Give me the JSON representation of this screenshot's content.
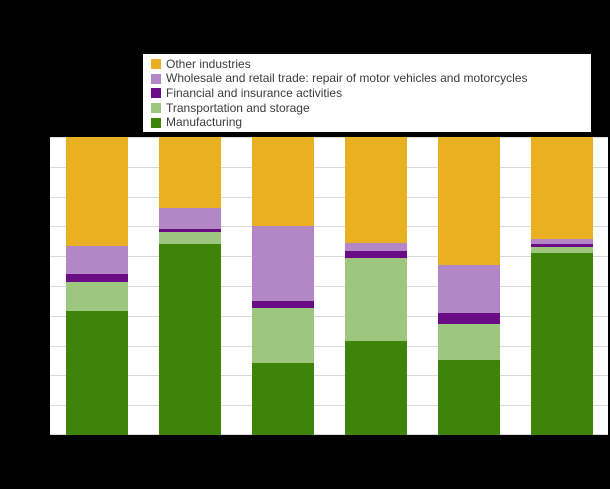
{
  "colors": {
    "background": "#000000",
    "plot_background": "#ffffff",
    "gridline": "#d9d9d9",
    "legend_border": "#000000",
    "legend_text": "#3d3d3d"
  },
  "legend": {
    "items": [
      {
        "label": "Other industries",
        "color": "#e9b121"
      },
      {
        "label": "Wholesale and retail trade: repair of motor vehicles and motorcycles",
        "color": "#b387c5"
      },
      {
        "label": "Financial and insurance activities",
        "color": "#690c86"
      },
      {
        "label": "Transportation and storage",
        "color": "#9dc67f"
      },
      {
        "label": "Manufacturing",
        "color": "#3e8408"
      }
    ]
  },
  "chart_data": {
    "type": "bar",
    "stacked": true,
    "units": "percent",
    "title": "",
    "xlabel": "",
    "ylabel": "",
    "categories": [
      "",
      "",
      "",
      "",
      "",
      ""
    ],
    "category_labels_visible": false,
    "axis_tick_labels_visible": false,
    "ylim": [
      0,
      100
    ],
    "ytick_interval": 10,
    "grid": true,
    "legend_position": "top",
    "series": [
      {
        "name": "Manufacturing",
        "color": "#3e8408",
        "values": [
          41.5,
          64.0,
          24.0,
          31.5,
          25.0,
          61.0
        ]
      },
      {
        "name": "Transportation and storage",
        "color": "#9dc67f",
        "values": [
          10.0,
          4.2,
          18.5,
          28.0,
          12.4,
          2.1
        ]
      },
      {
        "name": "Financial and insurance activities",
        "color": "#690c86",
        "values": [
          2.5,
          0.8,
          2.5,
          2.3,
          3.7,
          1.1
        ]
      },
      {
        "name": "Wholesale and retail trade: repair of motor vehicles and motorcycles",
        "color": "#b387c5",
        "values": [
          9.5,
          7.3,
          25.0,
          2.5,
          15.9,
          1.5
        ]
      },
      {
        "name": "Other industries",
        "color": "#e9b121",
        "values": [
          36.5,
          23.7,
          30.0,
          35.7,
          43.0,
          34.3
        ]
      }
    ]
  }
}
